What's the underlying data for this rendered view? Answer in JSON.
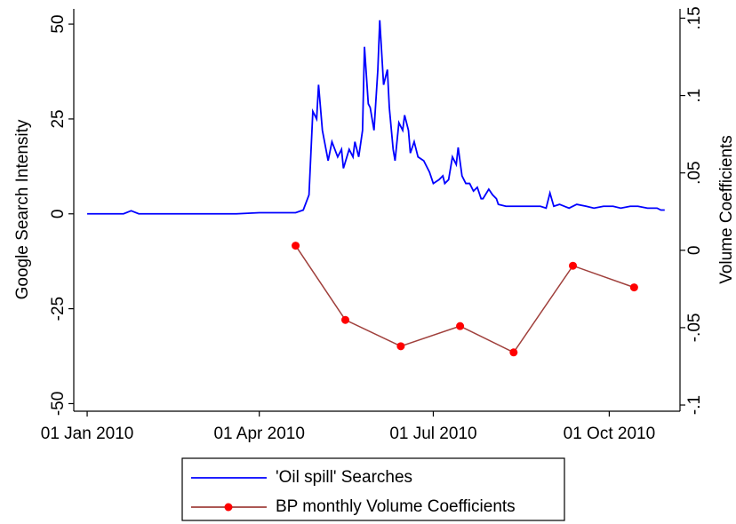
{
  "chart_data": {
    "type": "line",
    "ylabel": "Google Search Intensity",
    "y2label": "Volume Coefficients",
    "xlim": [
      "2009-12-25",
      "2010-11-07"
    ],
    "xticks": [
      {
        "value": "2010-01-01",
        "label": "01 Jan 2010"
      },
      {
        "value": "2010-04-01",
        "label": "01 Apr 2010"
      },
      {
        "value": "2010-07-01",
        "label": "01 Jul 2010"
      },
      {
        "value": "2010-10-01",
        "label": "01 Oct 2010"
      }
    ],
    "ylim": [
      -52,
      54
    ],
    "yticks": [
      -50,
      -25,
      0,
      25,
      50
    ],
    "y2lim": [
      -0.104,
      0.156
    ],
    "y2ticks": [
      {
        "value": -0.1,
        "label": "-.1"
      },
      {
        "value": -0.05,
        "label": "-.05"
      },
      {
        "value": 0,
        "label": "0"
      },
      {
        "value": 0.05,
        "label": ".05"
      },
      {
        "value": 0.1,
        "label": ".1"
      },
      {
        "value": 0.15,
        "label": ".15"
      }
    ],
    "series": [
      {
        "name": "'Oil spill' Searches",
        "color": "#0000ff",
        "axis": "y",
        "markers": false,
        "x": [
          "2010-01-01",
          "2010-01-20",
          "2010-01-24",
          "2010-01-28",
          "2010-02-15",
          "2010-03-01",
          "2010-03-20",
          "2010-04-01",
          "2010-04-20",
          "2010-04-24",
          "2010-04-27",
          "2010-04-29",
          "2010-05-01",
          "2010-05-02",
          "2010-05-04",
          "2010-05-07",
          "2010-05-09",
          "2010-05-12",
          "2010-05-14",
          "2010-05-15",
          "2010-05-18",
          "2010-05-20",
          "2010-05-21",
          "2010-05-23",
          "2010-05-25",
          "2010-05-26",
          "2010-05-28",
          "2010-05-29",
          "2010-05-31",
          "2010-06-02",
          "2010-06-03",
          "2010-06-05",
          "2010-06-07",
          "2010-06-08",
          "2010-06-10",
          "2010-06-11",
          "2010-06-13",
          "2010-06-15",
          "2010-06-16",
          "2010-06-18",
          "2010-06-19",
          "2010-06-21",
          "2010-06-23",
          "2010-06-26",
          "2010-06-28",
          "2010-06-29",
          "2010-07-01",
          "2010-07-04",
          "2010-07-06",
          "2010-07-07",
          "2010-07-09",
          "2010-07-11",
          "2010-07-13",
          "2010-07-14",
          "2010-07-16",
          "2010-07-18",
          "2010-07-20",
          "2010-07-22",
          "2010-07-24",
          "2010-07-26",
          "2010-07-27",
          "2010-07-30",
          "2010-08-01",
          "2010-08-03",
          "2010-08-04",
          "2010-08-08",
          "2010-08-13",
          "2010-08-17",
          "2010-08-22",
          "2010-08-26",
          "2010-08-29",
          "2010-08-31",
          "2010-09-02",
          "2010-09-05",
          "2010-09-10",
          "2010-09-14",
          "2010-09-19",
          "2010-09-23",
          "2010-09-28",
          "2010-10-03",
          "2010-10-07",
          "2010-10-12",
          "2010-10-16",
          "2010-10-21",
          "2010-10-26",
          "2010-10-28",
          "2010-10-30"
        ],
        "values": [
          0,
          0,
          0.8,
          0,
          0,
          0,
          0,
          0.3,
          0.3,
          1,
          5,
          27,
          25,
          34,
          22,
          14,
          19,
          15,
          17,
          12,
          17,
          15,
          19,
          15,
          22,
          44,
          29,
          28,
          22,
          38,
          51,
          34,
          38,
          28,
          17,
          14,
          24,
          22,
          26,
          22,
          16,
          19,
          15,
          14,
          12,
          11,
          8,
          9,
          10,
          8,
          9,
          15,
          13,
          17.5,
          10,
          8,
          8,
          6,
          7,
          4,
          4,
          6.5,
          5,
          4,
          2.5,
          2,
          2,
          2,
          2,
          2,
          1.5,
          5.5,
          2,
          2.5,
          1.5,
          2.5,
          2,
          1.5,
          2,
          2,
          1.5,
          2,
          2,
          1.5,
          1.5,
          1,
          1
        ]
      },
      {
        "name": "BP monthly Volume Coefficients",
        "color": "#a0403c",
        "marker_color": "#ff0000",
        "axis": "y2",
        "markers": true,
        "x": [
          "2010-04-20",
          "2010-05-16",
          "2010-06-14",
          "2010-07-15",
          "2010-08-12",
          "2010-09-12",
          "2010-10-14"
        ],
        "values": [
          0.003,
          -0.045,
          -0.062,
          -0.049,
          -0.066,
          -0.01,
          -0.024
        ]
      }
    ]
  }
}
